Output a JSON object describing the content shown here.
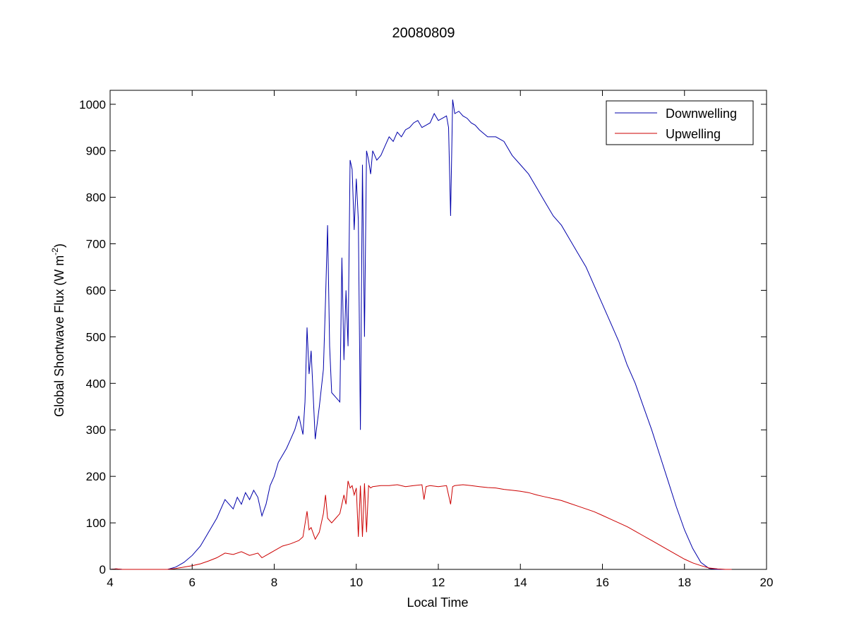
{
  "chart_data": {
    "type": "line",
    "title": "20080809",
    "xlabel": "Local Time",
    "ylabel": "Global Shortwave Flux (W m",
    "ylabel_sup": "-2",
    "ylabel_end": ")",
    "xlim": [
      4,
      20
    ],
    "ylim": [
      0,
      1030
    ],
    "xticks": [
      4,
      6,
      8,
      10,
      12,
      14,
      16,
      18,
      20
    ],
    "yticks": [
      0,
      100,
      200,
      300,
      400,
      500,
      600,
      700,
      800,
      900,
      1000
    ],
    "grid": false,
    "legend_position": "top-right",
    "series": [
      {
        "name": "Downwelling",
        "color": "#0000aa",
        "x": [
          4.0,
          4.15,
          4.3,
          4.5,
          5.0,
          5.4,
          5.6,
          5.8,
          6.0,
          6.2,
          6.4,
          6.6,
          6.8,
          6.9,
          7.0,
          7.1,
          7.2,
          7.3,
          7.4,
          7.5,
          7.6,
          7.7,
          7.8,
          7.9,
          8.0,
          8.1,
          8.2,
          8.3,
          8.4,
          8.5,
          8.6,
          8.7,
          8.75,
          8.8,
          8.85,
          8.9,
          9.0,
          9.1,
          9.2,
          9.25,
          9.3,
          9.35,
          9.4,
          9.5,
          9.6,
          9.65,
          9.7,
          9.75,
          9.8,
          9.85,
          9.9,
          9.95,
          10.0,
          10.05,
          10.1,
          10.15,
          10.2,
          10.25,
          10.3,
          10.35,
          10.4,
          10.5,
          10.6,
          10.7,
          10.8,
          10.9,
          11.0,
          11.1,
          11.2,
          11.3,
          11.4,
          11.5,
          11.6,
          11.7,
          11.8,
          11.9,
          12.0,
          12.1,
          12.2,
          12.25,
          12.3,
          12.35,
          12.4,
          12.5,
          12.6,
          12.7,
          12.8,
          12.9,
          13.0,
          13.2,
          13.4,
          13.6,
          13.8,
          14.0,
          14.2,
          14.4,
          14.6,
          14.8,
          15.0,
          15.2,
          15.4,
          15.6,
          15.8,
          16.0,
          16.2,
          16.4,
          16.6,
          16.8,
          17.0,
          17.2,
          17.4,
          17.6,
          17.8,
          18.0,
          18.2,
          18.4,
          18.6,
          18.8,
          19.0,
          19.15
        ],
        "values": [
          0,
          1,
          0,
          0,
          0,
          0,
          5,
          15,
          30,
          50,
          80,
          110,
          150,
          140,
          130,
          155,
          140,
          165,
          150,
          170,
          155,
          115,
          140,
          180,
          200,
          230,
          245,
          260,
          280,
          300,
          330,
          290,
          360,
          520,
          420,
          470,
          280,
          350,
          430,
          580,
          740,
          480,
          380,
          370,
          360,
          670,
          450,
          600,
          480,
          880,
          860,
          730,
          840,
          750,
          300,
          870,
          500,
          900,
          880,
          850,
          900,
          880,
          890,
          910,
          930,
          920,
          940,
          930,
          945,
          950,
          960,
          965,
          950,
          955,
          960,
          980,
          965,
          970,
          975,
          950,
          760,
          1010,
          980,
          985,
          975,
          970,
          960,
          955,
          945,
          930,
          930,
          920,
          890,
          870,
          850,
          820,
          790,
          760,
          740,
          710,
          680,
          650,
          610,
          570,
          530,
          490,
          440,
          400,
          350,
          300,
          245,
          190,
          135,
          85,
          45,
          15,
          2,
          0,
          0,
          0
        ],
        "label_x": 0,
        "label_y": 0
      },
      {
        "name": "Upwelling",
        "color": "#cc0000",
        "x": [
          4.0,
          4.15,
          4.3,
          4.5,
          5.0,
          5.4,
          5.6,
          5.8,
          6.0,
          6.2,
          6.4,
          6.6,
          6.8,
          7.0,
          7.2,
          7.4,
          7.6,
          7.7,
          7.8,
          8.0,
          8.2,
          8.4,
          8.6,
          8.7,
          8.8,
          8.85,
          8.9,
          9.0,
          9.1,
          9.2,
          9.25,
          9.3,
          9.4,
          9.5,
          9.6,
          9.7,
          9.75,
          9.8,
          9.85,
          9.9,
          9.95,
          10.0,
          10.05,
          10.1,
          10.15,
          10.2,
          10.25,
          10.3,
          10.35,
          10.4,
          10.6,
          10.8,
          11.0,
          11.2,
          11.4,
          11.6,
          11.65,
          11.7,
          11.8,
          12.0,
          12.2,
          12.3,
          12.35,
          12.4,
          12.6,
          12.8,
          13.0,
          13.2,
          13.4,
          13.6,
          13.8,
          14.0,
          14.2,
          14.4,
          14.6,
          14.8,
          15.0,
          15.2,
          15.4,
          15.6,
          15.8,
          16.0,
          16.2,
          16.4,
          16.6,
          16.8,
          17.0,
          17.2,
          17.4,
          17.6,
          17.8,
          18.0,
          18.2,
          18.4,
          18.6,
          18.8,
          19.0,
          19.15
        ],
        "values": [
          0,
          1,
          0,
          0,
          0,
          0,
          2,
          5,
          8,
          12,
          18,
          25,
          35,
          32,
          38,
          30,
          35,
          25,
          30,
          40,
          50,
          55,
          62,
          70,
          125,
          85,
          90,
          65,
          80,
          120,
          160,
          110,
          100,
          110,
          120,
          160,
          140,
          190,
          175,
          180,
          160,
          175,
          70,
          180,
          70,
          185,
          80,
          180,
          175,
          178,
          180,
          180,
          182,
          178,
          180,
          182,
          150,
          178,
          180,
          178,
          180,
          140,
          178,
          180,
          182,
          180,
          178,
          176,
          175,
          172,
          170,
          168,
          165,
          160,
          156,
          152,
          148,
          142,
          136,
          130,
          124,
          116,
          108,
          100,
          92,
          82,
          72,
          62,
          52,
          42,
          32,
          22,
          14,
          8,
          3,
          1,
          0,
          0
        ]
      }
    ]
  }
}
